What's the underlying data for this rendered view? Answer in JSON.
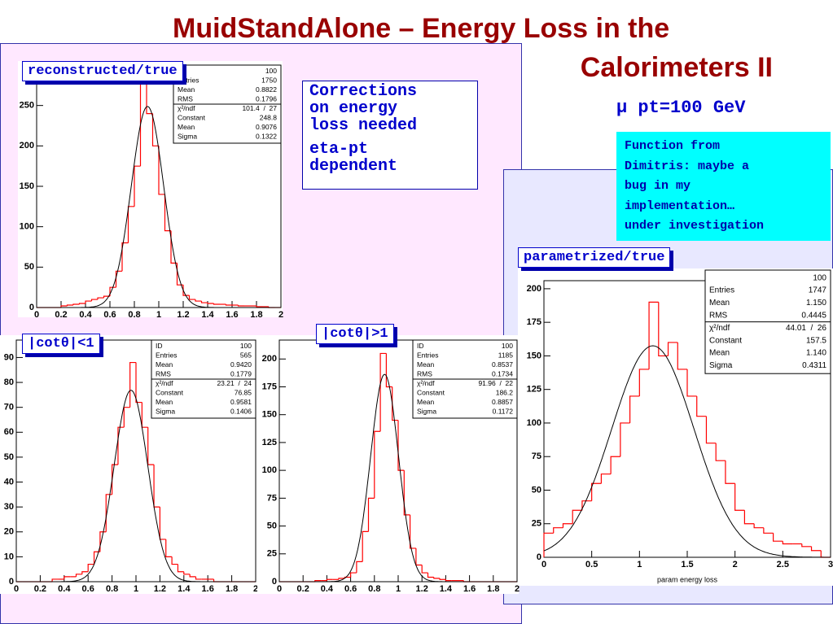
{
  "slide": {
    "title_line1": "MuidStandAlone – Energy Loss in the",
    "title_line2": "Calorimeters II",
    "subtitle": "μ pt=100 GeV",
    "note_lines": [
      "Corrections",
      "on energy",
      "loss needed"
    ],
    "note2_lines": [
      "eta-pt",
      "dependent"
    ],
    "cyan_lines": [
      "Function from",
      "Dimitris: maybe a",
      "bug in my",
      "implementation…",
      "under investigation"
    ]
  },
  "chart_data": [
    {
      "type": "histogram",
      "label": "reconstructed/true",
      "bins": [
        0,
        0.05,
        0.1,
        0.15,
        0.2,
        0.25,
        0.3,
        0.35,
        0.4,
        0.45,
        0.5,
        0.55,
        0.6,
        0.65,
        0.7,
        0.75,
        0.8,
        0.85,
        0.9,
        0.95,
        1,
        1.05,
        1.1,
        1.15,
        1.2,
        1.25,
        1.3,
        1.35,
        1.4,
        1.45,
        1.5,
        1.55,
        1.6,
        1.65,
        1.7,
        1.75,
        1.8,
        1.85,
        1.9,
        1.95,
        2
      ],
      "values": [
        0,
        0,
        0,
        0,
        2,
        3,
        4,
        5,
        8,
        10,
        12,
        14,
        25,
        45,
        80,
        125,
        175,
        285,
        240,
        200,
        140,
        95,
        55,
        28,
        15,
        10,
        8,
        6,
        5,
        4,
        4,
        3,
        3,
        2,
        2,
        2,
        1,
        1,
        0,
        0
      ],
      "color": "#ff0000",
      "fit_color": "#000000",
      "xlim": [
        0,
        2
      ],
      "xticks": [
        0,
        0.2,
        0.4,
        0.6,
        0.8,
        1,
        1.2,
        1.4,
        1.6,
        1.8,
        2
      ],
      "ylim": [
        0,
        300
      ],
      "yticks": [
        0,
        50,
        100,
        150,
        200,
        250
      ],
      "stats": [
        {
          "value": "100"
        },
        {
          "label": "Entries",
          "value": "1750"
        },
        {
          "label": "Mean",
          "value": "0.8822"
        },
        {
          "label": "RMS",
          "value": "0.1796"
        },
        {
          "label": "χ²/ndf",
          "value": "101.4  /  27"
        },
        {
          "label": "Constant",
          "value": "248.8"
        },
        {
          "label": "Mean",
          "value": "0.9076"
        },
        {
          "label": "Sigma",
          "value": "0.1322"
        }
      ]
    },
    {
      "type": "histogram",
      "label": "|cotθ|<1",
      "bins": [
        0,
        0.05,
        0.1,
        0.15,
        0.2,
        0.25,
        0.3,
        0.35,
        0.4,
        0.45,
        0.5,
        0.55,
        0.6,
        0.65,
        0.7,
        0.75,
        0.8,
        0.85,
        0.9,
        0.95,
        1,
        1.05,
        1.1,
        1.15,
        1.2,
        1.25,
        1.3,
        1.35,
        1.4,
        1.45,
        1.5,
        1.55,
        1.6,
        1.65,
        1.7,
        1.75,
        1.8,
        1.85,
        1.9,
        1.95,
        2
      ],
      "values": [
        0,
        0,
        0,
        0,
        0,
        0,
        1,
        1,
        2,
        2,
        3,
        4,
        7,
        12,
        20,
        35,
        47,
        62,
        70,
        88,
        72,
        62,
        47,
        30,
        17,
        10,
        7,
        4,
        3,
        2,
        1,
        1,
        1,
        0,
        0,
        0,
        0,
        0,
        0,
        0
      ],
      "color": "#ff0000",
      "fit_color": "#000000",
      "xlim": [
        0,
        2
      ],
      "xticks": [
        0,
        0.2,
        0.4,
        0.6,
        0.8,
        1,
        1.2,
        1.4,
        1.6,
        1.8,
        2
      ],
      "ylim": [
        0,
        97
      ],
      "yticks": [
        0,
        10,
        20,
        30,
        40,
        50,
        60,
        70,
        80,
        90
      ],
      "stats": [
        {
          "label": "ID",
          "value": "100"
        },
        {
          "label": "Entries",
          "value": "565"
        },
        {
          "label": "Mean",
          "value": "0.9420"
        },
        {
          "label": "RMS",
          "value": "0.1779"
        },
        {
          "label": "χ²/ndf",
          "value": "23.21  /  24"
        },
        {
          "label": "Constant",
          "value": "76.85"
        },
        {
          "label": "Mean",
          "value": "0.9581"
        },
        {
          "label": "Sigma",
          "value": "0.1406"
        }
      ]
    },
    {
      "type": "histogram",
      "label": "|cotθ|>1",
      "bins": [
        0,
        0.05,
        0.1,
        0.15,
        0.2,
        0.25,
        0.3,
        0.35,
        0.4,
        0.45,
        0.5,
        0.55,
        0.6,
        0.65,
        0.7,
        0.75,
        0.8,
        0.85,
        0.9,
        0.95,
        1,
        1.05,
        1.1,
        1.15,
        1.2,
        1.25,
        1.3,
        1.35,
        1.4,
        1.45,
        1.5,
        1.55,
        1.6,
        1.65,
        1.7,
        1.75,
        1.8,
        1.85,
        1.9,
        1.95,
        2
      ],
      "values": [
        0,
        0,
        0,
        0,
        0,
        0,
        1,
        1,
        2,
        2,
        3,
        4,
        8,
        18,
        45,
        75,
        135,
        205,
        175,
        145,
        100,
        60,
        30,
        15,
        8,
        4,
        3,
        2,
        1,
        1,
        1,
        0,
        0,
        0,
        0,
        0,
        0,
        0,
        0,
        0
      ],
      "color": "#ff0000",
      "fit_color": "#000000",
      "xlim": [
        0,
        2
      ],
      "xticks": [
        0,
        0.2,
        0.4,
        0.6,
        0.8,
        1,
        1.2,
        1.4,
        1.6,
        1.8,
        2
      ],
      "ylim": [
        0,
        217
      ],
      "yticks": [
        0,
        25,
        50,
        75,
        100,
        125,
        150,
        175,
        200
      ],
      "stats": [
        {
          "label": "ID",
          "value": "100"
        },
        {
          "label": "Entries",
          "value": "1185"
        },
        {
          "label": "Mean",
          "value": "0.8537"
        },
        {
          "label": "RMS",
          "value": "0.1734"
        },
        {
          "label": "χ²/ndf",
          "value": "91.96  /  22"
        },
        {
          "label": "Constant",
          "value": "186.2"
        },
        {
          "label": "Mean",
          "value": "0.8857"
        },
        {
          "label": "Sigma",
          "value": "0.1172"
        }
      ]
    },
    {
      "type": "histogram",
      "label": "parametrized/true",
      "xlabel": "param energy loss",
      "bins": [
        0,
        0.1,
        0.2,
        0.3,
        0.4,
        0.5,
        0.6,
        0.7,
        0.8,
        0.9,
        1,
        1.1,
        1.2,
        1.3,
        1.4,
        1.5,
        1.6,
        1.7,
        1.8,
        1.9,
        2,
        2.1,
        2.2,
        2.3,
        2.4,
        2.5,
        2.6,
        2.7,
        2.8,
        2.9,
        3
      ],
      "values": [
        18,
        22,
        25,
        35,
        42,
        55,
        62,
        75,
        100,
        120,
        140,
        190,
        150,
        160,
        140,
        120,
        105,
        85,
        72,
        55,
        35,
        25,
        22,
        18,
        12,
        10,
        10,
        8,
        5,
        0
      ],
      "color": "#ff0000",
      "fit_color": "#000000",
      "xlim": [
        0,
        3
      ],
      "xticks": [
        0,
        0.5,
        1,
        1.5,
        2,
        2.5,
        3
      ],
      "ylim": [
        0,
        206
      ],
      "yticks": [
        0,
        25,
        50,
        75,
        100,
        125,
        150,
        175,
        200
      ],
      "stats": [
        {
          "value": "100"
        },
        {
          "label": "Entries",
          "value": "1747"
        },
        {
          "label": "Mean",
          "value": "1.150"
        },
        {
          "label": "RMS",
          "value": "0.4445"
        },
        {
          "label": "χ²/ndf",
          "value": "44.01  /  26"
        },
        {
          "label": "Constant",
          "value": "157.5"
        },
        {
          "label": "Mean",
          "value": "1.140"
        },
        {
          "label": "Sigma",
          "value": "0.4311"
        }
      ]
    }
  ]
}
